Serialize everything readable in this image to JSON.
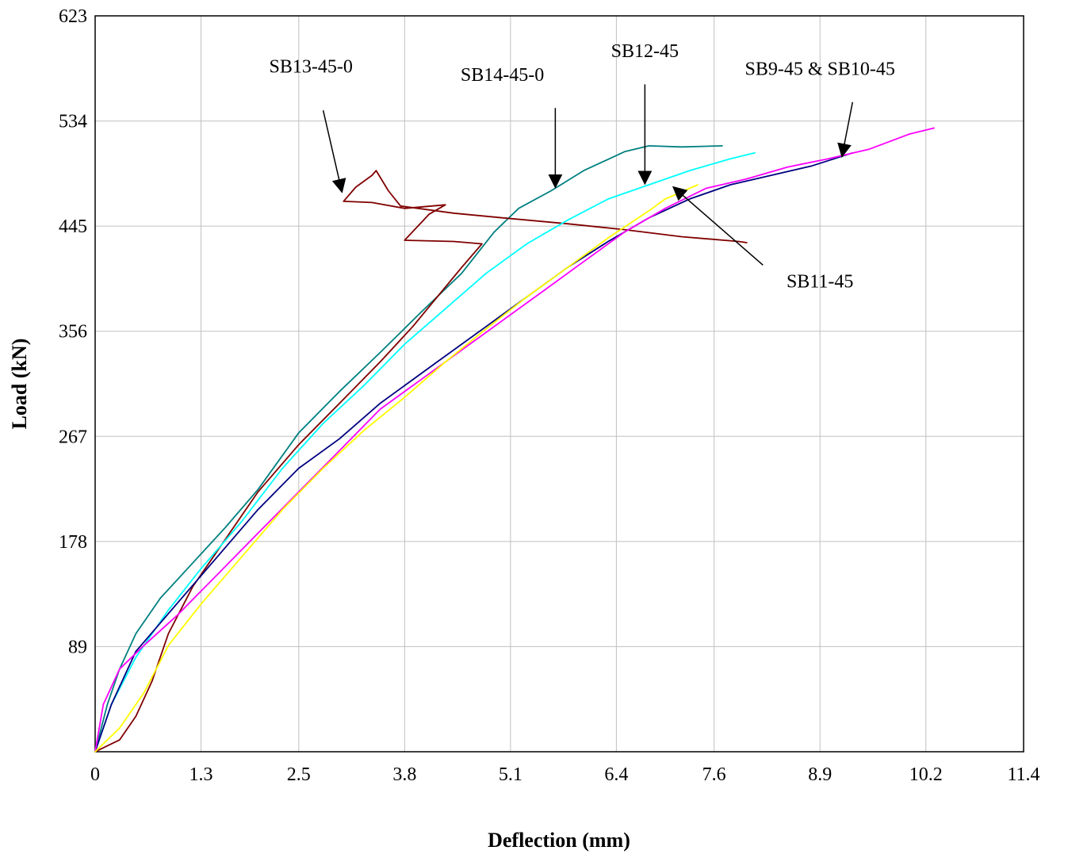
{
  "chart_data": {
    "type": "line",
    "title": "",
    "xlabel": "Deflection (mm)",
    "ylabel": "Load (kN)",
    "xlim": [
      0,
      11.4
    ],
    "ylim": [
      0,
      623
    ],
    "x_ticks": [
      "0",
      "1.3",
      "2.5",
      "3.8",
      "5.1",
      "6.4",
      "7.6",
      "8.9",
      "10.2",
      "11.4"
    ],
    "y_ticks": [
      "89",
      "178",
      "267",
      "356",
      "445",
      "534",
      "623"
    ],
    "grid": true,
    "legend": "none",
    "series": [
      {
        "color": "#008080",
        "points": [
          [
            0,
            0
          ],
          [
            0.15,
            40
          ],
          [
            0.3,
            70
          ],
          [
            0.5,
            100
          ],
          [
            0.8,
            130
          ],
          [
            1.2,
            160
          ],
          [
            1.6,
            190
          ],
          [
            2.0,
            222
          ],
          [
            2.5,
            270
          ],
          [
            3.0,
            305
          ],
          [
            3.5,
            338
          ],
          [
            4.0,
            372
          ],
          [
            4.5,
            405
          ],
          [
            4.9,
            440
          ],
          [
            5.2,
            460
          ],
          [
            5.6,
            475
          ],
          [
            6.0,
            492
          ],
          [
            6.5,
            508
          ],
          [
            6.8,
            513
          ],
          [
            7.2,
            512
          ],
          [
            7.7,
            513
          ]
        ]
      },
      {
        "color": "#800000",
        "points": [
          [
            0,
            0
          ],
          [
            0.3,
            10
          ],
          [
            0.5,
            30
          ],
          [
            0.7,
            60
          ],
          [
            0.9,
            100
          ],
          [
            1.2,
            140
          ],
          [
            1.6,
            180
          ],
          [
            2.0,
            220
          ],
          [
            2.5,
            260
          ],
          [
            3.0,
            295
          ],
          [
            3.5,
            330
          ],
          [
            3.9,
            360
          ],
          [
            4.2,
            385
          ],
          [
            4.5,
            410
          ],
          [
            4.75,
            430
          ],
          [
            4.4,
            432
          ],
          [
            3.8,
            433
          ],
          [
            4.1,
            455
          ],
          [
            4.3,
            463
          ],
          [
            3.8,
            460
          ],
          [
            3.4,
            465
          ],
          [
            3.05,
            466
          ],
          [
            3.2,
            478
          ],
          [
            3.4,
            488
          ],
          [
            3.45,
            492
          ],
          [
            3.6,
            475
          ],
          [
            3.75,
            462
          ],
          [
            4.4,
            456
          ],
          [
            5.0,
            452
          ],
          [
            5.8,
            447
          ],
          [
            6.5,
            442
          ],
          [
            7.2,
            436
          ],
          [
            7.9,
            432
          ],
          [
            8.0,
            431
          ]
        ]
      },
      {
        "color": "#00FFFF",
        "points": [
          [
            0,
            0
          ],
          [
            0.2,
            40
          ],
          [
            0.5,
            80
          ],
          [
            0.9,
            120
          ],
          [
            1.3,
            155
          ],
          [
            1.8,
            195
          ],
          [
            2.3,
            240
          ],
          [
            2.8,
            278
          ],
          [
            3.3,
            310
          ],
          [
            3.8,
            345
          ],
          [
            4.3,
            375
          ],
          [
            4.8,
            405
          ],
          [
            5.3,
            430
          ],
          [
            5.8,
            450
          ],
          [
            6.3,
            468
          ],
          [
            6.8,
            480
          ],
          [
            7.3,
            492
          ],
          [
            7.8,
            502
          ],
          [
            8.1,
            507
          ]
        ]
      },
      {
        "color": "#000080",
        "points": [
          [
            0,
            0
          ],
          [
            0.2,
            40
          ],
          [
            0.5,
            85
          ],
          [
            1.0,
            125
          ],
          [
            1.5,
            165
          ],
          [
            2.0,
            205
          ],
          [
            2.5,
            240
          ],
          [
            3.0,
            265
          ],
          [
            3.5,
            295
          ],
          [
            4.2,
            330
          ],
          [
            4.8,
            360
          ],
          [
            5.3,
            385
          ],
          [
            5.8,
            410
          ],
          [
            6.3,
            432
          ],
          [
            6.8,
            452
          ],
          [
            7.3,
            468
          ],
          [
            7.8,
            480
          ],
          [
            8.3,
            488
          ],
          [
            8.8,
            496
          ],
          [
            9.3,
            507
          ]
        ]
      },
      {
        "color": "#FF00FF",
        "points": [
          [
            0,
            0
          ],
          [
            0.1,
            40
          ],
          [
            0.3,
            70
          ],
          [
            0.6,
            90
          ],
          [
            1.0,
            115
          ],
          [
            1.5,
            150
          ],
          [
            2.0,
            185
          ],
          [
            2.5,
            220
          ],
          [
            3.0,
            255
          ],
          [
            3.5,
            290
          ],
          [
            4.0,
            315
          ],
          [
            4.5,
            340
          ],
          [
            5.0,
            365
          ],
          [
            5.5,
            390
          ],
          [
            6.0,
            415
          ],
          [
            6.5,
            440
          ],
          [
            7.0,
            460
          ],
          [
            7.5,
            477
          ],
          [
            8.0,
            485
          ],
          [
            8.5,
            495
          ],
          [
            9.0,
            502
          ],
          [
            9.5,
            510
          ],
          [
            10.0,
            523
          ],
          [
            10.3,
            528
          ]
        ]
      },
      {
        "color": "#FFFF00",
        "points": [
          [
            0,
            0
          ],
          [
            0.3,
            20
          ],
          [
            0.6,
            50
          ],
          [
            0.9,
            90
          ],
          [
            1.3,
            125
          ],
          [
            1.8,
            165
          ],
          [
            2.3,
            205
          ],
          [
            2.8,
            240
          ],
          [
            3.3,
            272
          ],
          [
            3.8,
            300
          ],
          [
            4.3,
            330
          ],
          [
            4.8,
            358
          ],
          [
            5.3,
            385
          ],
          [
            5.8,
            410
          ],
          [
            6.3,
            435
          ],
          [
            6.8,
            458
          ],
          [
            7.0,
            468
          ],
          [
            7.4,
            480
          ]
        ]
      }
    ],
    "annotations": [
      {
        "label": "SB13-45-0",
        "text_at": [
          2.65,
          575
        ],
        "arrow_from": [
          2.8,
          543
        ],
        "arrow_to": [
          3.03,
          474
        ]
      },
      {
        "label": "SB14-45-0",
        "text_at": [
          5.0,
          568
        ],
        "arrow_from": [
          5.65,
          545
        ],
        "arrow_to": [
          5.65,
          478
        ]
      },
      {
        "label": "SB12-45",
        "text_at": [
          6.75,
          588
        ],
        "arrow_from": [
          6.75,
          565
        ],
        "arrow_to": [
          6.75,
          481
        ]
      },
      {
        "label": "SB9-45 & SB10-45",
        "text_at": [
          8.9,
          573
        ],
        "arrow_from": [
          9.3,
          550
        ],
        "arrow_to": [
          9.17,
          504
        ]
      },
      {
        "label": "SB11-45",
        "text_at": [
          8.9,
          393
        ],
        "arrow_from": [
          8.2,
          412
        ],
        "arrow_to": [
          7.1,
          478
        ]
      }
    ]
  }
}
